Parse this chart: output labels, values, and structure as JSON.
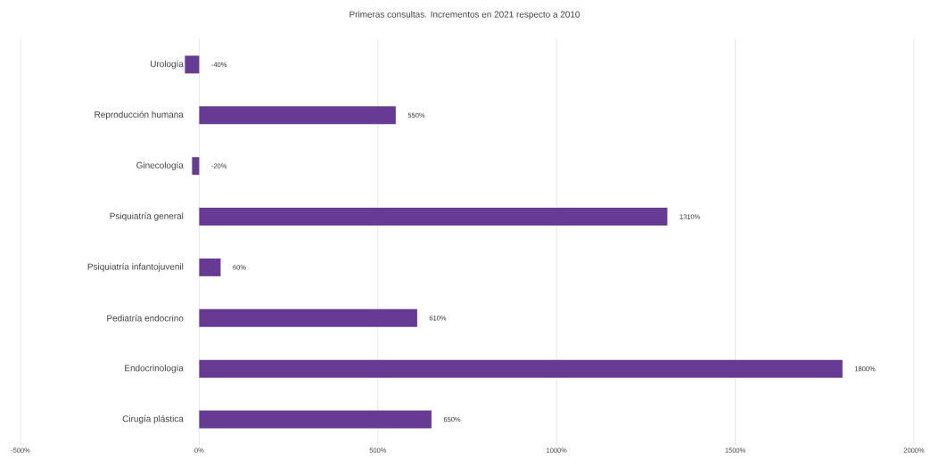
{
  "chart_data": {
    "type": "bar",
    "orientation": "horizontal",
    "title": "Primeras consultas. Incrementos en 2021 respecto a 2010",
    "categories": [
      "Urología",
      "Reproducción humana",
      "Ginecología",
      "Psiquiatría general",
      "Psiquiatría infantojuvenil",
      "Pediatría endocrino",
      "Endocrinología",
      "Cirugía plástica"
    ],
    "values": [
      -40,
      550,
      -20,
      1310,
      60,
      610,
      1800,
      650
    ],
    "value_labels": [
      "-40%",
      "550%",
      "-20%",
      "1310%",
      "60%",
      "610%",
      "1800%",
      "650%"
    ],
    "color": "#673a93",
    "xlim": [
      -500,
      2000
    ],
    "xticks": [
      {
        "value": -500,
        "label": "-500%"
      },
      {
        "value": 0,
        "label": "0%"
      },
      {
        "value": 500,
        "label": "500%"
      },
      {
        "value": 1000,
        "label": "1000%"
      },
      {
        "value": 1500,
        "label": "1500%"
      },
      {
        "value": 2000,
        "label": "2000%"
      }
    ],
    "grid": "x"
  }
}
